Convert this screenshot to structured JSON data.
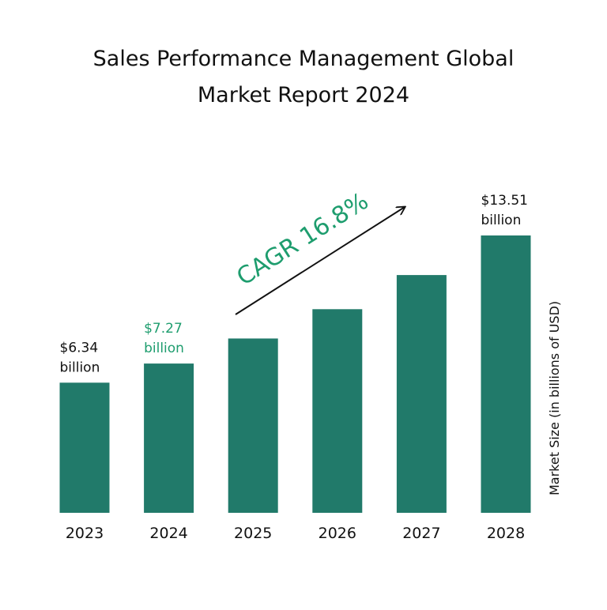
{
  "chart_data": {
    "type": "bar",
    "title_lines": [
      "Sales Performance Management Global",
      "Market Report 2024"
    ],
    "categories": [
      "2023",
      "2024",
      "2025",
      "2026",
      "2027",
      "2028"
    ],
    "values": [
      6.34,
      7.27,
      8.49,
      9.92,
      11.58,
      13.51
    ],
    "data_labels": [
      {
        "category": "2023",
        "amount": "$6.34",
        "unit": "billion"
      },
      {
        "category": "2024",
        "amount": "$7.27",
        "unit": "billion"
      },
      {
        "category": "2028",
        "amount": "$13.51",
        "unit": "billion"
      }
    ],
    "annotation": "CAGR 16.8%",
    "xlabel": "",
    "ylabel": "Market Size (in billions of USD)",
    "ylim": [
      0,
      13.51
    ],
    "grid": false,
    "colors": {
      "bar": "#217a6a",
      "highlight_label": "#1e9d6e",
      "text": "#111111"
    }
  }
}
